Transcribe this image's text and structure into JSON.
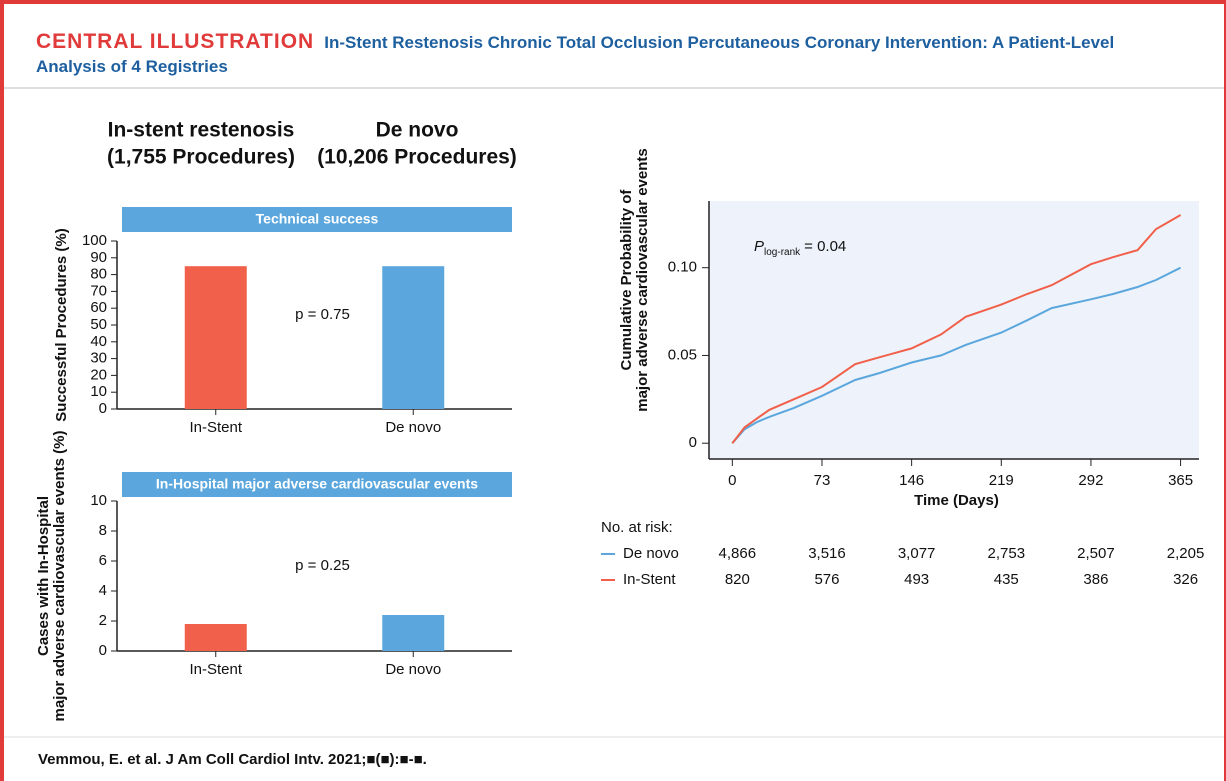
{
  "header": {
    "label": "CENTRAL ILLUSTRATION",
    "title": "In-Stent Restenosis Chronic Total Occlusion Percutaneous Coronary Intervention: A Patient-Level Analysis of 4 Registries"
  },
  "headings": [
    {
      "name": "In-stent restenosis",
      "count": "(1,755 Procedures)"
    },
    {
      "name": "De novo",
      "count": "(10,206 Procedures)"
    }
  ],
  "chart_data": [
    {
      "type": "bar",
      "title": "Technical success",
      "ylabel": [
        "Successful Procedures (%)"
      ],
      "categories": [
        "In-Stent",
        "De novo"
      ],
      "values": [
        85,
        85
      ],
      "colors": [
        "#f0604a",
        "#5ba7dd"
      ],
      "ylim": [
        0,
        100
      ],
      "yticks": [
        0,
        10,
        20,
        30,
        40,
        50,
        60,
        70,
        80,
        90,
        100
      ],
      "annotation": "p = 0.75"
    },
    {
      "type": "bar",
      "title": "In-Hospital major adverse cardiovascular events",
      "ylabel": [
        "Cases with In-Hospital",
        "major adverse cardiovascular events (%)"
      ],
      "categories": [
        "In-Stent",
        "De novo"
      ],
      "values": [
        1.8,
        2.4
      ],
      "colors": [
        "#f0604a",
        "#5ba7dd"
      ],
      "ylim": [
        0,
        10
      ],
      "yticks": [
        0,
        2,
        4,
        6,
        8,
        10
      ],
      "annotation": "p = 0.25"
    },
    {
      "type": "line",
      "ylabel": [
        "Cumulative Probability of",
        "major adverse cardiovascular events"
      ],
      "xlabel": "Time (Days)",
      "x": [
        0,
        10,
        20,
        30,
        50,
        73,
        100,
        120,
        146,
        170,
        190,
        219,
        240,
        260,
        292,
        310,
        330,
        345,
        365
      ],
      "series": [
        {
          "name": "De novo",
          "color": "#5ba7dd",
          "values": [
            0,
            0.008,
            0.012,
            0.015,
            0.02,
            0.027,
            0.036,
            0.04,
            0.046,
            0.05,
            0.056,
            0.063,
            0.07,
            0.077,
            0.082,
            0.085,
            0.089,
            0.093,
            0.1
          ]
        },
        {
          "name": "In-Stent",
          "color": "#f0604a",
          "values": [
            0,
            0.009,
            0.014,
            0.019,
            0.025,
            0.032,
            0.045,
            0.049,
            0.054,
            0.062,
            0.072,
            0.079,
            0.085,
            0.09,
            0.102,
            0.106,
            0.11,
            0.122,
            0.13
          ]
        }
      ],
      "xlim": [
        -19,
        380
      ],
      "xticks": [
        0,
        73,
        146,
        219,
        292,
        365
      ],
      "ylim": [
        -0.009,
        0.138
      ],
      "yticks": [
        0,
        0.05,
        {
          "value": 0.1,
          "label": "0.10"
        }
      ],
      "annotation": {
        "italic": "P",
        "sub": "log-rank",
        "text": "= 0.04"
      },
      "risk_table": {
        "title": "No. at risk:",
        "rows": [
          {
            "values": [
              4866,
              3516,
              3077,
              2753,
              2507,
              2205
            ],
            "value_labels": [
              "4,866",
              "3,516",
              "3,077",
              "2,753",
              "2,507",
              "2,205"
            ]
          },
          {
            "values": [
              820,
              576,
              493,
              435,
              386,
              326
            ]
          }
        ]
      }
    }
  ],
  "footer": "Vemmou, E. et al. J Am Coll Cardiol Intv. 2021;■(■):■-■."
}
